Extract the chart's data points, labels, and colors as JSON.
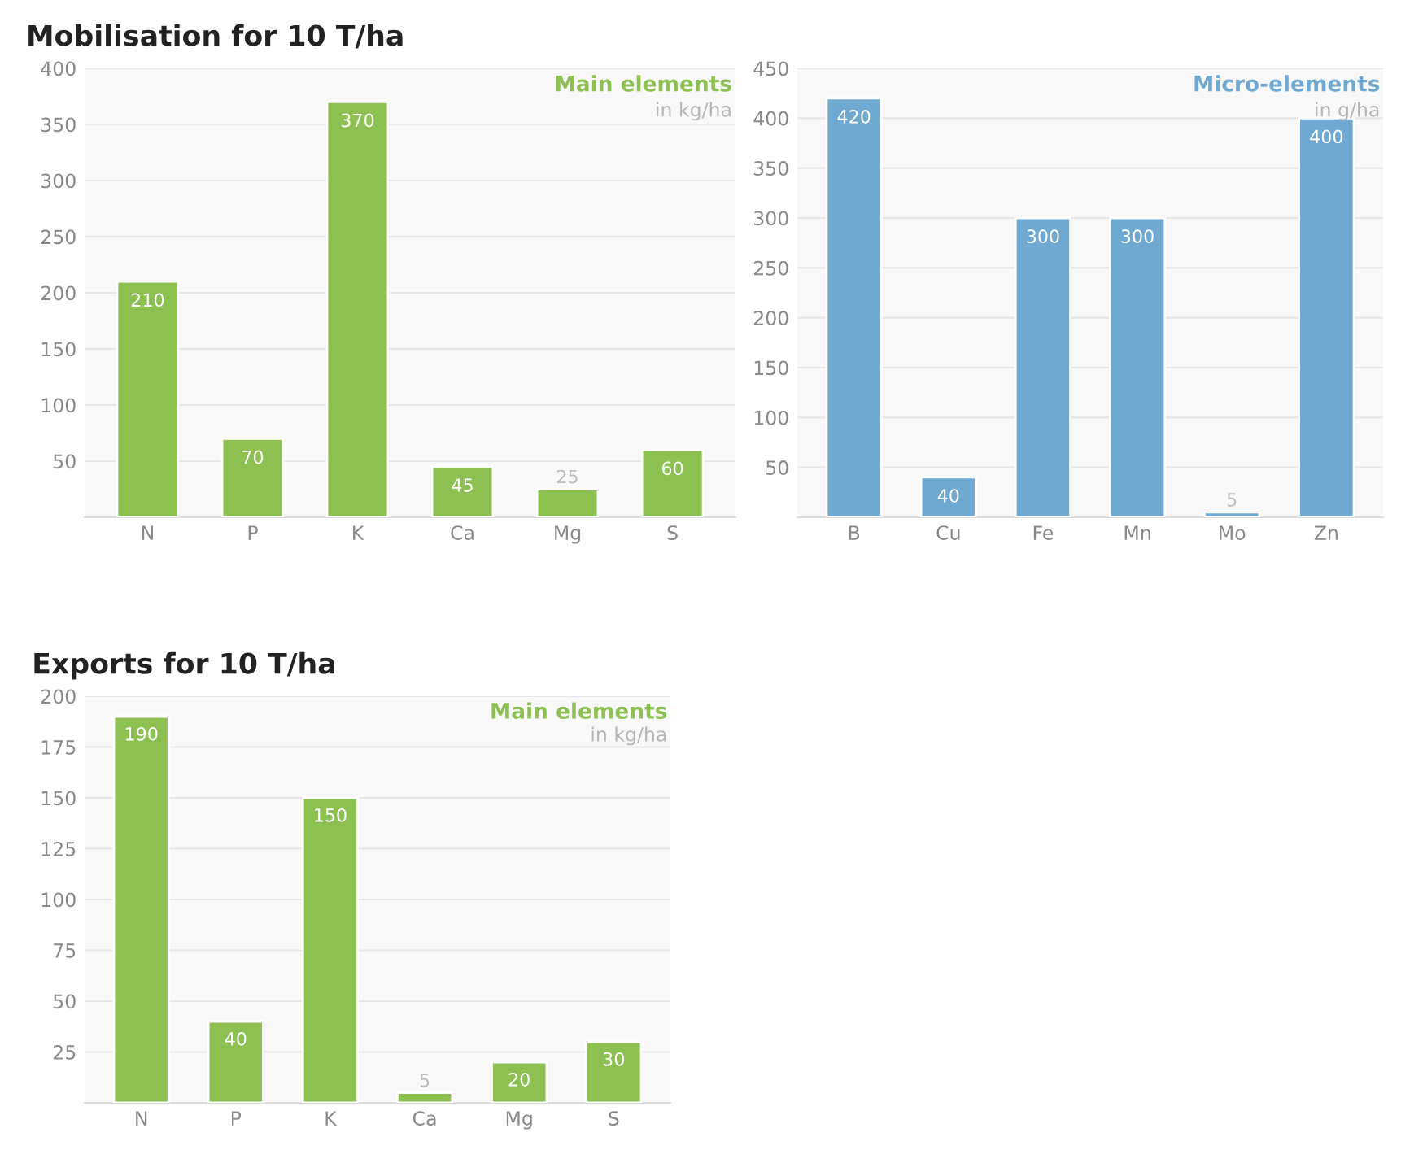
{
  "chart_data": [
    {
      "type": "bar",
      "title": "Mobilisation for 10 T/ha",
      "annotations": [
        "Main elements",
        "in kg/ha"
      ],
      "categories": [
        "N",
        "P",
        "K",
        "Ca",
        "Mg",
        "S"
      ],
      "values": [
        210,
        70,
        370,
        45,
        25,
        60
      ],
      "color": "#8cc152",
      "ylim": [
        0,
        400
      ],
      "yticks": [
        50,
        100,
        150,
        200,
        250,
        300,
        350,
        400
      ],
      "grid": "y",
      "data_labels": true
    },
    {
      "type": "bar",
      "annotations": [
        "Micro-elements",
        "in g/ha"
      ],
      "categories": [
        "B",
        "Cu",
        "Fe",
        "Mn",
        "Mo",
        "Zn"
      ],
      "values": [
        420,
        40,
        300,
        300,
        5,
        400
      ],
      "color": "#6fa8d0",
      "ylim": [
        0,
        450
      ],
      "yticks": [
        50,
        100,
        150,
        200,
        250,
        300,
        350,
        400,
        450
      ],
      "grid": "y",
      "data_labels": true
    },
    {
      "type": "bar",
      "title": "Exports for 10 T/ha",
      "annotations": [
        "Main elements",
        "in kg/ha"
      ],
      "categories": [
        "N",
        "P",
        "K",
        "Ca",
        "Mg",
        "S"
      ],
      "values": [
        190,
        40,
        150,
        5,
        20,
        30
      ],
      "color": "#8cc152",
      "ylim": [
        0,
        200
      ],
      "yticks": [
        25,
        50,
        75,
        100,
        125,
        150,
        175,
        200
      ],
      "grid": "y",
      "data_labels": true
    }
  ]
}
